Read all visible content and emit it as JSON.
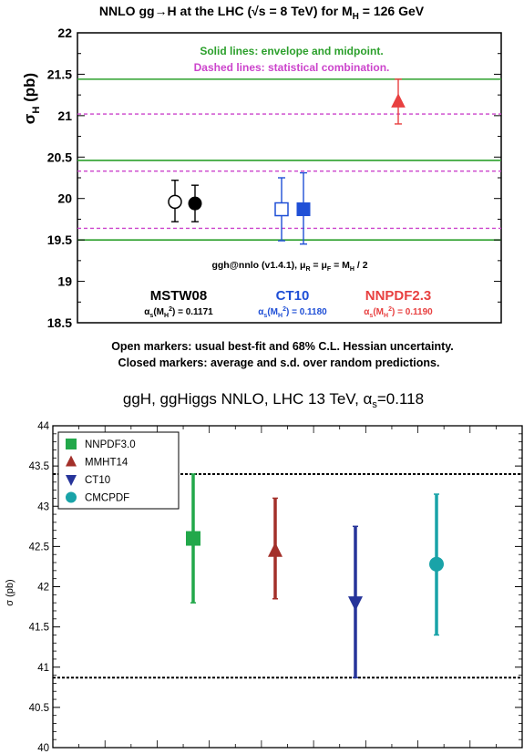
{
  "chart_data": [
    {
      "type": "scatter",
      "title": "NNLO gg→H at the LHC (√s = 8 TeV) for M",
      "title_sub": "H",
      "title_tail": " = 126 GeV",
      "ylabel": "σ",
      "ylabel_sub": "H",
      "ylabel_tail": " (pb)",
      "ylim": [
        18.5,
        22
      ],
      "yticks": [
        "18.5",
        "19",
        "19.5",
        "20",
        "20.5",
        "21",
        "21.5",
        "22"
      ],
      "yticks_values": [
        18.5,
        19,
        19.5,
        20,
        20.5,
        21,
        21.5,
        22
      ],
      "legend_lines": [
        {
          "text": "Solid lines: envelope and midpoint.",
          "color": "#2ca02c"
        },
        {
          "text": "Dashed lines: statistical combination.",
          "color": "#cc44cc"
        }
      ],
      "program_note": "ggh@nnlo (v1.4.1), μ",
      "program_note_tail": " = μ",
      "program_note_end": " = M",
      "program_note_final": " / 2",
      "groups": [
        {
          "name": "MSTW08",
          "alphas": "α",
          "alphas_tail": "(M",
          "alphas_end": ") = 0.1171",
          "color": "#000000"
        },
        {
          "name": "CT10",
          "alphas": "α",
          "alphas_tail": "(M",
          "alphas_end": ") = 0.1180",
          "color": "#1f4fd6"
        },
        {
          "name": "NNPDF2.3",
          "alphas": "α",
          "alphas_tail": "(M",
          "alphas_end": ") = 0.1190",
          "color": "#e84040"
        }
      ],
      "points": [
        {
          "group": "MSTW08",
          "marker": "open-circle",
          "y": 19.96,
          "lo": 19.72,
          "hi": 20.22
        },
        {
          "group": "MSTW08",
          "marker": "filled-circle",
          "y": 19.94,
          "lo": 19.72,
          "hi": 20.16
        },
        {
          "group": "CT10",
          "marker": "open-square",
          "y": 19.87,
          "lo": 19.49,
          "hi": 20.25
        },
        {
          "group": "CT10",
          "marker": "filled-square",
          "y": 19.87,
          "lo": 19.45,
          "hi": 20.31
        },
        {
          "group": "NNPDF2.3",
          "marker": "filled-triangle",
          "y": 21.17,
          "lo": 20.9,
          "hi": 21.44
        }
      ],
      "envelope_lines": [
        19.5,
        20.46,
        21.44
      ],
      "statistical_lines": [
        19.64,
        20.33,
        21.02
      ],
      "caption": [
        "Open markers: usual best-fit and 68% C.L. Hessian uncertainty.",
        "Closed markers: average and s.d. over random predictions."
      ]
    },
    {
      "type": "scatter",
      "title": "ggH, ggHiggs NNLO, LHC 13 TeV, α",
      "title_sub": "s",
      "title_tail": "=0.118",
      "ylabel": "σ (pb)",
      "ylim": [
        40,
        44
      ],
      "yticks": [
        "40",
        "40.5",
        "41",
        "41.5",
        "42",
        "42.5",
        "43",
        "43.5",
        "44"
      ],
      "yticks_values": [
        40,
        40.5,
        41,
        41.5,
        42,
        42.5,
        43,
        43.5,
        44
      ],
      "series": [
        {
          "name": "NNPDF3.0",
          "marker": "square",
          "color": "#22a84a",
          "y": 42.6,
          "lo": 41.8,
          "hi": 43.4
        },
        {
          "name": "MMHT14",
          "marker": "triangle-up",
          "color": "#a3302a",
          "y": 42.45,
          "lo": 41.85,
          "hi": 43.1
        },
        {
          "name": "CT10",
          "marker": "triangle-down",
          "color": "#26349a",
          "y": 41.8,
          "lo": 40.87,
          "hi": 42.75
        },
        {
          "name": "CMCPDF",
          "marker": "circle",
          "color": "#19a3a8",
          "y": 42.28,
          "lo": 41.4,
          "hi": 43.15
        }
      ],
      "envelope_lines": [
        40.87,
        43.4
      ],
      "legend_placement": "top-left"
    }
  ]
}
